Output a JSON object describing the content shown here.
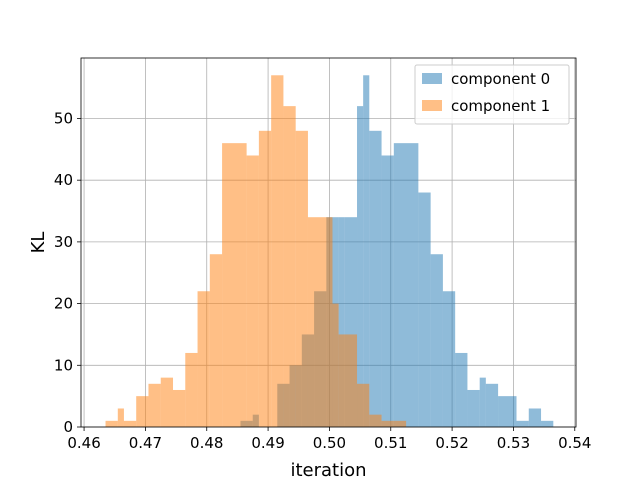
{
  "chart_data": {
    "type": "histogram",
    "xlabel": "iteration",
    "ylabel": "KL",
    "xlim": [
      0.4595,
      0.5402
    ],
    "ylim": [
      0,
      59.8
    ],
    "x_ticks": [
      0.46,
      0.47,
      0.48,
      0.49,
      0.5,
      0.51,
      0.52,
      0.53,
      0.54
    ],
    "x_tick_labels": [
      "0.46",
      "0.47",
      "0.48",
      "0.49",
      "0.50",
      "0.51",
      "0.52",
      "0.53",
      "0.54"
    ],
    "y_ticks": [
      0,
      10,
      20,
      30,
      40,
      50
    ],
    "y_tick_labels": [
      "0",
      "10",
      "20",
      "30",
      "40",
      "50"
    ],
    "grid": true,
    "legend_position": "top-right",
    "series": [
      {
        "name": "component 0",
        "color": "#1f77b4",
        "alpha": 0.5,
        "bin_start": 0.4855,
        "bin_width": 0.001,
        "counts": [
          1,
          2,
          0,
          0,
          0,
          0,
          0,
          0,
          0,
          0,
          0,
          0,
          0,
          0,
          0,
          0,
          0,
          0,
          0,
          0,
          0,
          0,
          0,
          0,
          0,
          0,
          0,
          0,
          0,
          0,
          0,
          0,
          0,
          0,
          0,
          0,
          0,
          0,
          0,
          0,
          0,
          0,
          0,
          0,
          0,
          0,
          0,
          0,
          0,
          0,
          0,
          0,
          0,
          0,
          0,
          0,
          0,
          0,
          0,
          0,
          0,
          0,
          0,
          0,
          0,
          0,
          0,
          0,
          0,
          0,
          0,
          0,
          0,
          0,
          0,
          0,
          0,
          0,
          0,
          0,
          0,
          0,
          0,
          0,
          0,
          0,
          0,
          0,
          0,
          0,
          0,
          0,
          0,
          0,
          0,
          0,
          0,
          0,
          0,
          0
        ],
        "bins": [
          [
            0.4855,
            0.4875,
            1
          ],
          [
            0.4875,
            0.4885,
            2
          ],
          [
            0.4915,
            0.4935,
            7
          ],
          [
            0.4935,
            0.4955,
            10
          ],
          [
            0.4955,
            0.4975,
            15
          ],
          [
            0.4975,
            0.4995,
            22
          ],
          [
            0.4995,
            0.5015,
            34
          ],
          [
            0.5015,
            0.5025,
            34
          ],
          [
            0.5025,
            0.5045,
            34
          ],
          [
            0.5045,
            0.5055,
            52
          ],
          [
            0.5055,
            0.5065,
            57
          ],
          [
            0.5065,
            0.5085,
            48
          ],
          [
            0.5085,
            0.5105,
            44
          ],
          [
            0.5105,
            0.5145,
            46
          ],
          [
            0.5145,
            0.5165,
            38
          ],
          [
            0.5165,
            0.5185,
            28
          ],
          [
            0.5185,
            0.5205,
            22
          ],
          [
            0.5205,
            0.5225,
            12
          ],
          [
            0.5225,
            0.5245,
            6
          ],
          [
            0.5245,
            0.5255,
            8
          ],
          [
            0.5255,
            0.5275,
            7
          ],
          [
            0.5275,
            0.5305,
            5
          ],
          [
            0.5305,
            0.5325,
            1
          ],
          [
            0.5325,
            0.5345,
            3
          ],
          [
            0.5345,
            0.5365,
            1
          ]
        ]
      },
      {
        "name": "component 1",
        "color": "#ff7f0e",
        "alpha": 0.5,
        "bins": [
          [
            0.4635,
            0.4655,
            1
          ],
          [
            0.4655,
            0.4665,
            3
          ],
          [
            0.4665,
            0.4685,
            1
          ],
          [
            0.4685,
            0.4705,
            5
          ],
          [
            0.4705,
            0.4725,
            7
          ],
          [
            0.4725,
            0.4745,
            8
          ],
          [
            0.4745,
            0.4765,
            6
          ],
          [
            0.4765,
            0.4785,
            12
          ],
          [
            0.4785,
            0.4805,
            22
          ],
          [
            0.4805,
            0.4825,
            28
          ],
          [
            0.4825,
            0.4865,
            46
          ],
          [
            0.4865,
            0.4885,
            44
          ],
          [
            0.4885,
            0.4905,
            48
          ],
          [
            0.4905,
            0.4925,
            57
          ],
          [
            0.4925,
            0.4945,
            52
          ],
          [
            0.4945,
            0.4965,
            48
          ],
          [
            0.4965,
            0.5005,
            34
          ],
          [
            0.5005,
            0.5015,
            20
          ],
          [
            0.5015,
            0.5045,
            15
          ],
          [
            0.5045,
            0.5065,
            7
          ],
          [
            0.5065,
            0.5085,
            2
          ],
          [
            0.5085,
            0.5105,
            1
          ],
          [
            0.5105,
            0.5125,
            1
          ]
        ]
      }
    ]
  }
}
